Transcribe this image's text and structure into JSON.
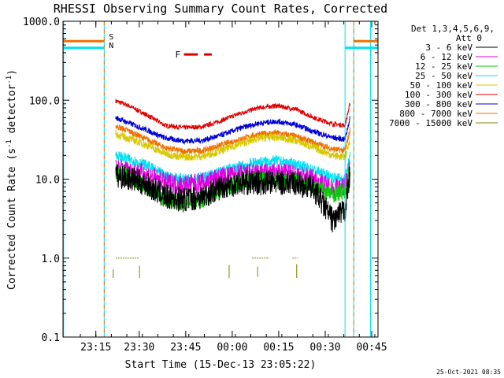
{
  "chart_data": {
    "type": "line",
    "title": "RHESSI Observing Summary Count Rates, Corrected",
    "xlabel": "Start Time (15-Dec-13 23:05:22)",
    "ylabel": "Corrected Count Rate (s",
    "ylabel_sup1": "-1",
    "ylabel_mid": " detector",
    "ylabel_sup2": "-1",
    "ylabel_end": ")",
    "y_scale": "log",
    "ylim": [
      0.1,
      1000
    ],
    "xlim": [
      "23:05:22",
      "00:47:00"
    ],
    "yticks": [
      {
        "value": 0.1,
        "label": "0.1"
      },
      {
        "value": 1,
        "label": "1.0"
      },
      {
        "value": 10,
        "label": "10.0"
      },
      {
        "value": 100,
        "label": "100.0"
      },
      {
        "value": 1000,
        "label": "1000.0"
      }
    ],
    "xticks": [
      {
        "minutes": 10.6,
        "label": "23:15"
      },
      {
        "minutes": 24.6,
        "label": "23:30"
      },
      {
        "minutes": 39.6,
        "label": "23:45"
      },
      {
        "minutes": 54.6,
        "label": "00:00"
      },
      {
        "minutes": 69.6,
        "label": "00:15"
      },
      {
        "minutes": 84.6,
        "label": "00:30"
      },
      {
        "minutes": 99.6,
        "label": "00:45"
      }
    ],
    "legend_placement": "right",
    "legend_header": [
      "Det 1,3,4,5,6,9,",
      "Att 0"
    ],
    "series": [
      {
        "name": "3 - 6 keV",
        "color": "#000000",
        "y": [
          11.0,
          10.5,
          8.5,
          6.0,
          5.5,
          6.0,
          8.0,
          9.0,
          9.0,
          9.0,
          9.0,
          7.5,
          3.0,
          4.0,
          12.0
        ]
      },
      {
        "name": "6 - 12 keV",
        "color": "#e000e0",
        "y": [
          14.0,
          13.0,
          11.5,
          9.0,
          8.5,
          9.0,
          10.5,
          11.5,
          12.0,
          12.0,
          11.5,
          10.0,
          7.5,
          8.0,
          16.0
        ]
      },
      {
        "name": "12 - 25 keV",
        "color": "#00d000",
        "y": [
          12.5,
          11.0,
          8.0,
          5.5,
          5.0,
          5.5,
          7.5,
          9.0,
          10.0,
          10.0,
          9.5,
          8.0,
          6.5,
          7.0,
          13.0
        ]
      },
      {
        "name": "25 - 50 keV",
        "color": "#00e0f0",
        "y": [
          20.0,
          18.0,
          15.0,
          11.0,
          10.0,
          10.5,
          12.5,
          14.5,
          16.5,
          17.0,
          15.5,
          13.0,
          10.5,
          10.0,
          19.0
        ]
      },
      {
        "name": "50 - 100 keV",
        "color": "#d8c800",
        "y": [
          37.0,
          33.0,
          27.0,
          21.0,
          19.0,
          19.5,
          23.0,
          28.0,
          33.0,
          34.0,
          31.0,
          25.0,
          20.0,
          19.0,
          32.0
        ]
      },
      {
        "name": "100 - 300 keV",
        "color": "#e00000",
        "y": [
          98.0,
          86.0,
          65.0,
          48.0,
          45.0,
          46.0,
          55.0,
          68.0,
          80.0,
          85.0,
          77.0,
          60.0,
          50.0,
          48.0,
          90.0
        ]
      },
      {
        "name": "300 - 800 keV",
        "color": "#0000d8",
        "y": [
          60.0,
          52.0,
          42.0,
          33.0,
          30.5,
          31.0,
          36.0,
          44.0,
          51.0,
          54.0,
          49.0,
          40.0,
          33.5,
          32.0,
          60.0
        ]
      },
      {
        "name": "800 - 7000 keV",
        "color": "#f07000",
        "y": [
          47.0,
          41.0,
          32.0,
          25.0,
          22.5,
          23.0,
          27.0,
          32.0,
          37.0,
          38.5,
          35.0,
          29.0,
          24.0,
          23.0,
          42.0
        ]
      },
      {
        "name": "7000 - 15000 keV",
        "color": "#808000",
        "y": []
      }
    ],
    "series_x_minutes": [
      17.0,
      21.0,
      27.0,
      33.0,
      39.0,
      45.0,
      51.0,
      57.0,
      63.0,
      69.0,
      75.0,
      81.0,
      87.0,
      91.0,
      92.6
    ],
    "annotations": {
      "flag_labels": [
        {
          "text": "S",
          "color": "#f07000"
        },
        {
          "text": "N",
          "color": "#00e0f0"
        },
        {
          "text": "F",
          "color": "#e00000"
        }
      ],
      "timestamp": "25-Oct-2021 08:35"
    }
  }
}
